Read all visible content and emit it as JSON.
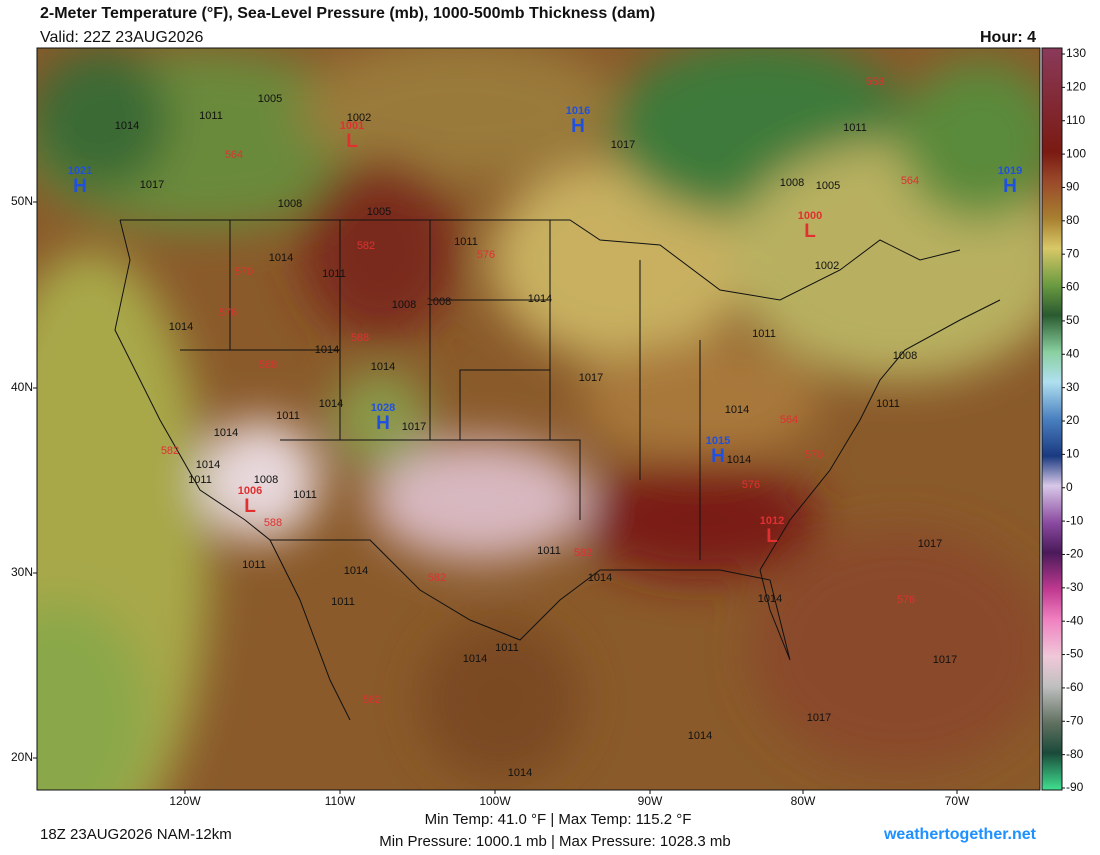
{
  "header": {
    "title": "2-Meter Temperature (°F), Sea-Level Pressure (mb), 1000-500mb Thickness (dam)",
    "valid": "Valid: 22Z 23AUG2026",
    "hour": "Hour: 4"
  },
  "map": {
    "lat_labels": [
      "50N",
      "40N",
      "30N",
      "20N"
    ],
    "lon_labels": [
      "120W",
      "110W",
      "100W",
      "90W",
      "80W",
      "70W"
    ],
    "pressure_centers": [
      {
        "letter": "H",
        "value": "1021"
      },
      {
        "letter": "H",
        "value": "1016"
      },
      {
        "letter": "H",
        "value": "1028"
      },
      {
        "letter": "H",
        "value": "1015"
      },
      {
        "letter": "H",
        "value": "1019"
      },
      {
        "letter": "L",
        "value": "1001"
      },
      {
        "letter": "L",
        "value": "1000"
      },
      {
        "letter": "L",
        "value": "1006"
      },
      {
        "letter": "L",
        "value": "1012"
      }
    ],
    "isobar_labels": [
      "1005",
      "1014",
      "1011",
      "1002",
      "1017",
      "1011",
      "1017",
      "1008",
      "1005",
      "1011",
      "1014",
      "1011",
      "1008",
      "1008",
      "1014",
      "1002",
      "1005",
      "1008",
      "1014",
      "1014",
      "1011",
      "1008",
      "1014",
      "1017",
      "1011",
      "1014",
      "1017",
      "1014",
      "1011",
      "1014",
      "1014",
      "1011",
      "1008",
      "1011",
      "1014",
      "1011",
      "1017",
      "1014",
      "1011",
      "1014",
      "1011",
      "1014",
      "1014",
      "1011",
      "1017",
      "1014",
      "1014",
      "1017"
    ],
    "thickness_labels": [
      "558",
      "564",
      "564",
      "582",
      "576",
      "570",
      "576",
      "588",
      "588",
      "582",
      "588",
      "564",
      "570",
      "576",
      "582",
      "582",
      "576",
      "582"
    ]
  },
  "colorbar": {
    "ticks": [
      130,
      120,
      110,
      100,
      90,
      80,
      70,
      60,
      50,
      40,
      30,
      20,
      10,
      0,
      -10,
      -20,
      -30,
      -40,
      -50,
      -60,
      -70,
      -80,
      -90
    ]
  },
  "footer": {
    "run": "18Z 23AUG2026 NAM-12km",
    "temp": "Min Temp:  41.0 °F | Max Temp: 115.2 °F",
    "pressure": "Min Pressure: 1000.1 mb | Max Pressure: 1028.3 mb",
    "site": "weathertogether.net"
  }
}
